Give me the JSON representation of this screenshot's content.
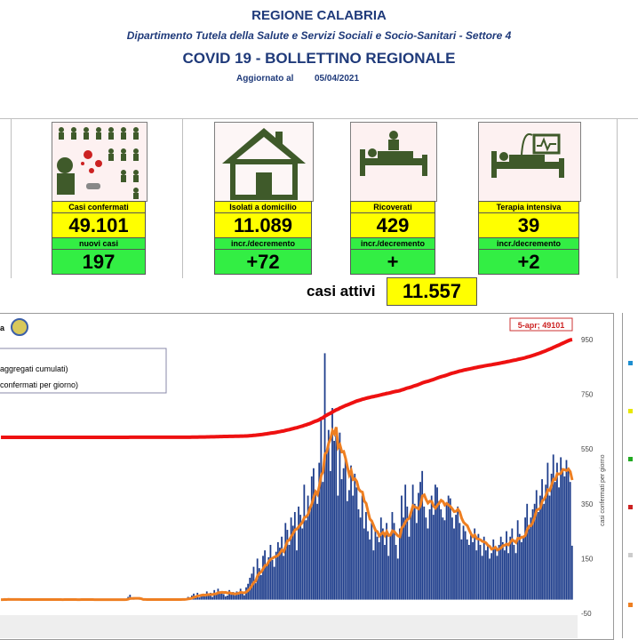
{
  "header": {
    "region": "REGIONE CALABRIA",
    "department": "Dipartimento Tutela della Salute e Servizi Sociali e Socio-Sanitari - Settore 4",
    "title": "COVID 19 - BOLLETTINO REGIONALE",
    "updated_label": "Aggiornato al",
    "updated_date": "05/04/2021"
  },
  "cards": {
    "confirmed": {
      "label": "Casi confermati",
      "value": "49.101",
      "sub_label": "nuovi casi",
      "sub_value": "197"
    },
    "home": {
      "label": "Isolati a domicilio",
      "value": "11.089",
      "sub_label": "incr./decremento",
      "sub_value": "+72"
    },
    "hospital": {
      "label": "Ricoverati",
      "value": "429",
      "sub_label": "incr./decremento",
      "sub_value": "+"
    },
    "icu": {
      "label": "Terapia intensiva",
      "value": "39",
      "sub_label": "incr./decremento",
      "sub_value": "+2"
    }
  },
  "active": {
    "label": "casi attivi",
    "value": "11.557"
  },
  "colors": {
    "header_blue": "#1f3a7a",
    "yellow": "#ffff00",
    "green": "#33ee44",
    "bars": "#1f3e8c",
    "cumulative_line": "#ee1111",
    "average_line": "#ee7f22"
  },
  "chart_data": {
    "type": "bar",
    "legend": [
      {
        "name": "aggregati cumulati)",
        "color": "#ee1111"
      },
      {
        "name": "confermati per giorno)",
        "color": "#1f3e8c"
      }
    ],
    "callout": "5-apr; 49101",
    "right_axis_label": "casi confermati per giorno",
    "ylim": [
      -50,
      950
    ],
    "yticks": [
      -50,
      150,
      350,
      550,
      750,
      950
    ],
    "grid": false,
    "series": [
      {
        "name": "confermati per giorno",
        "values": [
          0,
          0,
          2,
          0,
          3,
          0,
          0,
          1,
          0,
          0,
          0,
          2,
          0,
          0,
          1,
          0,
          0,
          0,
          0,
          0,
          0,
          2,
          0,
          0,
          0,
          0,
          1,
          0,
          0,
          0,
          0,
          0,
          0,
          0,
          2,
          0,
          0,
          0,
          0,
          0,
          0,
          0,
          0,
          1,
          0,
          0,
          0,
          0,
          0,
          0,
          0,
          0,
          0,
          0,
          0,
          0,
          0,
          0,
          0,
          0,
          0,
          0,
          0,
          0,
          0,
          0,
          0,
          2,
          10,
          18,
          0,
          3,
          0,
          0,
          2,
          0,
          0,
          0,
          0,
          0,
          0,
          1,
          0,
          0,
          2,
          0,
          0,
          0,
          0,
          1,
          0,
          0,
          0,
          0,
          2,
          0,
          0,
          3,
          0,
          4,
          10,
          8,
          15,
          22,
          12,
          25,
          8,
          20,
          18,
          12,
          30,
          16,
          25,
          10,
          35,
          22,
          40,
          30,
          28,
          20,
          12,
          15,
          35,
          18,
          28,
          16,
          30,
          20,
          40,
          26,
          16,
          45,
          58,
          80,
          95,
          120,
          60,
          150,
          115,
          90,
          160,
          180,
          130,
          155,
          200,
          145,
          120,
          175,
          210,
          190,
          230,
          160,
          280,
          255,
          200,
          300,
          270,
          320,
          180,
          340,
          310,
          260,
          420,
          290,
          380,
          340,
          450,
          480,
          400,
          350,
          500,
          660,
          430,
          900,
          540,
          620,
          470,
          700,
          580,
          600,
          380,
          610,
          440,
          480,
          520,
          360,
          400,
          490,
          380,
          460,
          410,
          330,
          300,
          380,
          260,
          320,
          250,
          220,
          280,
          180,
          260,
          230,
          210,
          300,
          260,
          200,
          280,
          160,
          240,
          320,
          280,
          200,
          150,
          260,
          380,
          300,
          420,
          340,
          230,
          310,
          420,
          350,
          280,
          390,
          430,
          470,
          340,
          300,
          260,
          330,
          380,
          310,
          420,
          410,
          360,
          330,
          300,
          290,
          350,
          380,
          370,
          300,
          260,
          310,
          340,
          280,
          220,
          270,
          250,
          220,
          200,
          240,
          210,
          260,
          180,
          240,
          200,
          160,
          230,
          180,
          200,
          150,
          170,
          220,
          190,
          160,
          200,
          230,
          210,
          180,
          250,
          170,
          230,
          260,
          200,
          170,
          290,
          240,
          210,
          230,
          300,
          350,
          260,
          300,
          330,
          350,
          400,
          320,
          380,
          440,
          350,
          420,
          500,
          380,
          460,
          530,
          430,
          500,
          410,
          520,
          480,
          450,
          510,
          470,
          430,
          197
        ]
      }
    ]
  }
}
